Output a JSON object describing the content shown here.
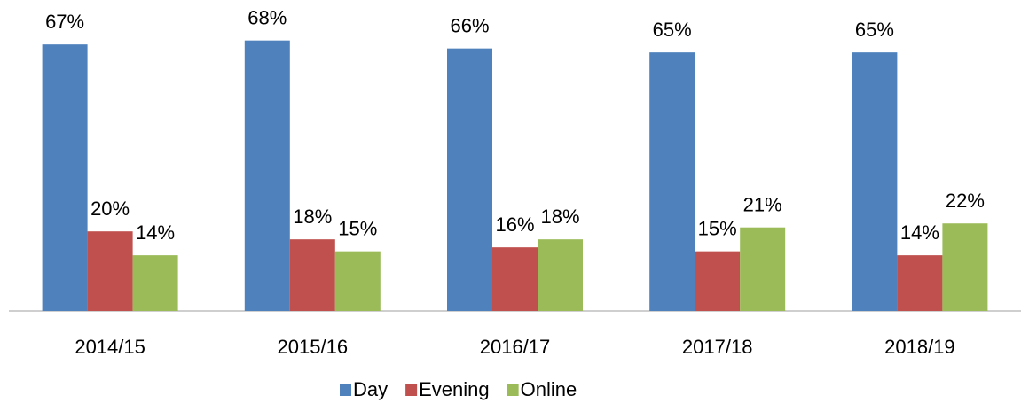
{
  "chart_data": {
    "type": "bar",
    "categories": [
      "2014/15",
      "2015/16",
      "2016/17",
      "2017/18",
      "2018/19"
    ],
    "series": [
      {
        "name": "Day",
        "color": "#4f81bd",
        "values": [
          67,
          68,
          66,
          65,
          65
        ],
        "value_labels": [
          "67%",
          "68%",
          "66%",
          "65%",
          "65%"
        ]
      },
      {
        "name": "Evening",
        "color": "#c0504d",
        "values": [
          20,
          18,
          16,
          15,
          14
        ],
        "value_labels": [
          "20%",
          "18%",
          "16%",
          "15%",
          "14%"
        ]
      },
      {
        "name": "Online",
        "color": "#9bbb59",
        "values": [
          14,
          15,
          18,
          21,
          22
        ],
        "value_labels": [
          "14%",
          "15%",
          "18%",
          "21%",
          "22%"
        ]
      }
    ],
    "legend": "bottom"
  }
}
